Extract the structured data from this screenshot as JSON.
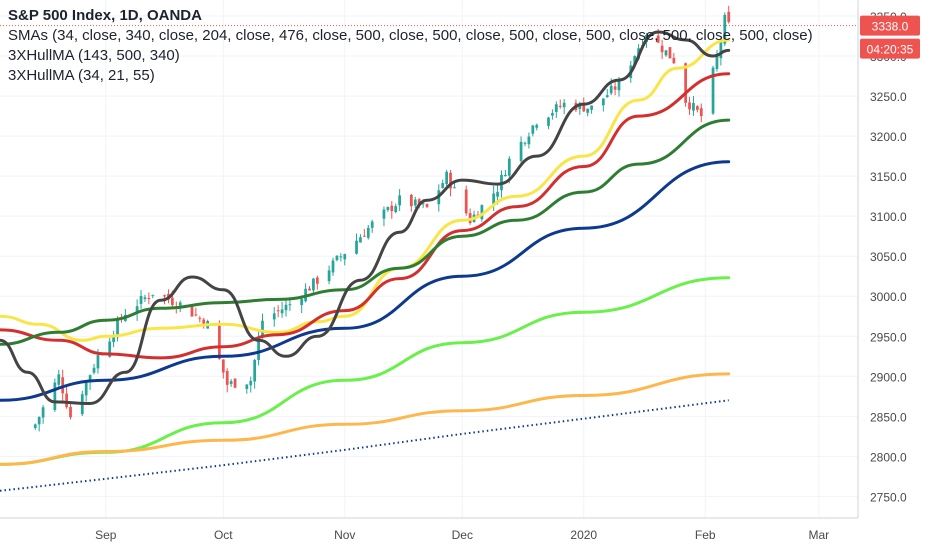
{
  "chart_data": {
    "type": "candlestick",
    "title": "S&P 500 Index, 1D, OANDA",
    "legend": [
      "SMAs (34, close, 340, close, 204, close, 476, close, 500, close, 500, close, 500, close, 500, close, 500, close, 500, close)",
      "3XHullMA (143, 500, 340)",
      "3XHullMA (34, 21, 55)"
    ],
    "x_ticks": [
      "Sep",
      "Oct",
      "Nov",
      "Dec",
      "2020",
      "Feb",
      "Mar"
    ],
    "y_ticks": [
      2750.0,
      2800.0,
      2850.0,
      2900.0,
      2950.0,
      3000.0,
      3050.0,
      3100.0,
      3150.0,
      3200.0,
      3250.0,
      3300.0,
      3350.0
    ],
    "ylim": [
      2723,
      3370
    ],
    "last_price": "3338.0",
    "countdown": "04:20:35",
    "colors": {
      "up": "#26a69a",
      "down": "#ef5350",
      "price_label": "#ef5350",
      "grid": "#f0f3fa"
    },
    "anchor_closes": [
      {
        "date": "2019-08-14",
        "close": 2840
      },
      {
        "date": "2019-08-20",
        "close": 2900
      },
      {
        "date": "2019-08-23",
        "close": 2850
      },
      {
        "date": "2019-08-30",
        "close": 2925
      },
      {
        "date": "2019-09-06",
        "close": 2980
      },
      {
        "date": "2019-09-13",
        "close": 3005
      },
      {
        "date": "2019-09-20",
        "close": 2990
      },
      {
        "date": "2019-09-27",
        "close": 2965
      },
      {
        "date": "2019-10-02",
        "close": 2890
      },
      {
        "date": "2019-10-08",
        "close": 2895
      },
      {
        "date": "2019-10-11",
        "close": 2970
      },
      {
        "date": "2019-10-18",
        "close": 2990
      },
      {
        "date": "2019-10-25",
        "close": 3020
      },
      {
        "date": "2019-11-01",
        "close": 3055
      },
      {
        "date": "2019-11-08",
        "close": 3090
      },
      {
        "date": "2019-11-15",
        "close": 3120
      },
      {
        "date": "2019-11-22",
        "close": 3110
      },
      {
        "date": "2019-11-27",
        "close": 3150
      },
      {
        "date": "2019-12-03",
        "close": 3095
      },
      {
        "date": "2019-12-10",
        "close": 3135
      },
      {
        "date": "2019-12-13",
        "close": 3170
      },
      {
        "date": "2019-12-20",
        "close": 3220
      },
      {
        "date": "2019-12-27",
        "close": 3240
      },
      {
        "date": "2020-01-03",
        "close": 3235
      },
      {
        "date": "2020-01-10",
        "close": 3265
      },
      {
        "date": "2020-01-17",
        "close": 3330
      },
      {
        "date": "2020-01-24",
        "close": 3295
      },
      {
        "date": "2020-01-27",
        "close": 3245
      },
      {
        "date": "2020-01-31",
        "close": 3225
      },
      {
        "date": "2020-02-04",
        "close": 3297
      },
      {
        "date": "2020-02-06",
        "close": 3345
      },
      {
        "date": "2020-02-07",
        "close": 3338
      }
    ],
    "series": [
      {
        "color": "#f9e547",
        "points": [
          [
            "2019-08-05",
            2975
          ],
          [
            "2019-08-15",
            2965
          ],
          [
            "2019-08-26",
            2945
          ],
          [
            "2019-09-01",
            2950
          ],
          [
            "2019-09-15",
            2960
          ],
          [
            "2019-10-01",
            2965
          ],
          [
            "2019-10-15",
            2955
          ],
          [
            "2019-10-25",
            2968
          ],
          [
            "2019-11-01",
            2975
          ],
          [
            "2019-11-15",
            3035
          ],
          [
            "2019-12-01",
            3095
          ],
          [
            "2019-12-15",
            3125
          ],
          [
            "2020-01-01",
            3175
          ],
          [
            "2020-01-15",
            3245
          ],
          [
            "2020-01-25",
            3285
          ],
          [
            "2020-02-07",
            3320
          ]
        ]
      },
      {
        "color": "#d32f2f",
        "points": [
          [
            "2019-08-05",
            2958
          ],
          [
            "2019-08-20",
            2945
          ],
          [
            "2019-09-01",
            2928
          ],
          [
            "2019-09-15",
            2923
          ],
          [
            "2019-10-01",
            2937
          ],
          [
            "2019-10-15",
            2952
          ],
          [
            "2019-11-01",
            2982
          ],
          [
            "2019-11-15",
            3022
          ],
          [
            "2019-12-01",
            3082
          ],
          [
            "2019-12-15",
            3112
          ],
          [
            "2020-01-01",
            3162
          ],
          [
            "2020-01-15",
            3225
          ],
          [
            "2020-02-07",
            3278
          ]
        ]
      },
      {
        "color": "#2e7d32",
        "points": [
          [
            "2019-08-05",
            2940
          ],
          [
            "2019-08-20",
            2955
          ],
          [
            "2019-09-01",
            2970
          ],
          [
            "2019-09-15",
            2985
          ],
          [
            "2019-10-01",
            2992
          ],
          [
            "2019-10-15",
            2996
          ],
          [
            "2019-11-01",
            3008
          ],
          [
            "2019-11-15",
            3035
          ],
          [
            "2019-12-01",
            3075
          ],
          [
            "2019-12-15",
            3095
          ],
          [
            "2020-01-01",
            3130
          ],
          [
            "2020-01-15",
            3165
          ],
          [
            "2020-02-07",
            3220
          ]
        ]
      },
      {
        "color": "#0d3a8e",
        "points": [
          [
            "2019-08-05",
            2870
          ],
          [
            "2019-09-01",
            2895
          ],
          [
            "2019-10-01",
            2925
          ],
          [
            "2019-11-01",
            2960
          ],
          [
            "2019-12-01",
            3025
          ],
          [
            "2020-01-01",
            3085
          ],
          [
            "2020-02-07",
            3168
          ]
        ]
      },
      {
        "color": "#69f04a",
        "points": [
          [
            "2019-08-05",
            2790
          ],
          [
            "2019-09-01",
            2805
          ],
          [
            "2019-10-01",
            2842
          ],
          [
            "2019-11-01",
            2895
          ],
          [
            "2019-12-01",
            2942
          ],
          [
            "2020-01-01",
            2980
          ],
          [
            "2020-02-07",
            3023
          ]
        ]
      },
      {
        "color": "#ffb74d",
        "points": [
          [
            "2019-08-05",
            2790
          ],
          [
            "2019-09-01",
            2806
          ],
          [
            "2019-10-01",
            2820
          ],
          [
            "2019-11-01",
            2840
          ],
          [
            "2019-12-01",
            2857
          ],
          [
            "2020-01-01",
            2876
          ],
          [
            "2020-02-07",
            2903
          ]
        ]
      },
      {
        "color": "#0d3a8e",
        "style": "dotted",
        "points": [
          [
            "2019-08-05",
            2757
          ],
          [
            "2019-09-01",
            2772
          ],
          [
            "2019-10-01",
            2789
          ],
          [
            "2019-11-01",
            2808
          ],
          [
            "2019-12-01",
            2828
          ],
          [
            "2020-01-01",
            2847
          ],
          [
            "2020-02-07",
            2870
          ]
        ]
      },
      {
        "color": "#444444",
        "points": [
          [
            "2019-08-05",
            2945
          ],
          [
            "2019-08-12",
            2905
          ],
          [
            "2019-08-19",
            2868
          ],
          [
            "2019-08-28",
            2866
          ],
          [
            "2019-09-06",
            2905
          ],
          [
            "2019-09-15",
            2995
          ],
          [
            "2019-09-23",
            3024
          ],
          [
            "2019-10-01",
            3008
          ],
          [
            "2019-10-10",
            2945
          ],
          [
            "2019-10-17",
            2925
          ],
          [
            "2019-10-25",
            2950
          ],
          [
            "2019-11-05",
            3020
          ],
          [
            "2019-11-15",
            3080
          ],
          [
            "2019-11-22",
            3120
          ],
          [
            "2019-12-01",
            3145
          ],
          [
            "2019-12-10",
            3140
          ],
          [
            "2019-12-20",
            3175
          ],
          [
            "2020-01-01",
            3240
          ],
          [
            "2020-01-10",
            3270
          ],
          [
            "2020-01-20",
            3330
          ],
          [
            "2020-01-27",
            3320
          ],
          [
            "2020-02-03",
            3300
          ],
          [
            "2020-02-07",
            3307
          ]
        ]
      }
    ]
  }
}
